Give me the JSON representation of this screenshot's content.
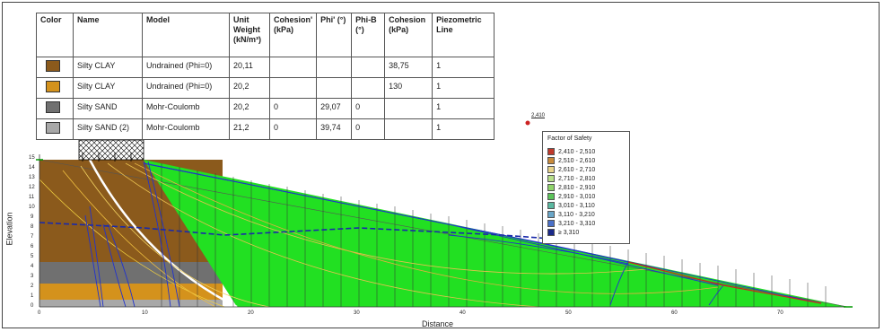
{
  "table": {
    "headers": [
      "Color",
      "Name",
      "Model",
      "Unit Weight (kN/m³)",
      "Cohesion' (kPa)",
      "Phi' (°)",
      "Phi-B (°)",
      "Cohesion (kPa)",
      "Piezometric Line"
    ],
    "rows": [
      {
        "color": "#8b5a1c",
        "name": "Silty CLAY",
        "model": "Undrained (Phi=0)",
        "unit_weight": "20,11",
        "cohesion_eff": "",
        "phi": "",
        "phib": "",
        "cohesion": "38,75",
        "piezo": "1"
      },
      {
        "color": "#d4921c",
        "name": "Silty CLAY",
        "model": "Undrained (Phi=0)",
        "unit_weight": "20,2",
        "cohesion_eff": "",
        "phi": "",
        "phib": "",
        "cohesion": "130",
        "piezo": "1"
      },
      {
        "color": "#707070",
        "name": "Silty SAND",
        "model": "Mohr-Coulomb",
        "unit_weight": "20,2",
        "cohesion_eff": "0",
        "phi": "29,07",
        "phib": "0",
        "cohesion": "",
        "piezo": "1"
      },
      {
        "color": "#a8a8a8",
        "name": "Silty SAND (2)",
        "model": "Mohr-Coulomb",
        "unit_weight": "21,2",
        "cohesion_eff": "0",
        "phi": "39,74",
        "phib": "0",
        "cohesion": "",
        "piezo": "1"
      }
    ]
  },
  "legend": {
    "title": "Factor of Safety",
    "items": [
      {
        "label": "2,410 - 2,510",
        "color": "#c0392b"
      },
      {
        "label": "2,510 - 2,610",
        "color": "#c98a3a"
      },
      {
        "label": "2,610 - 2,710",
        "color": "#e8d48a"
      },
      {
        "label": "2,710 - 2,810",
        "color": "#b8e08a"
      },
      {
        "label": "2,810 - 2,910",
        "color": "#8fd46a"
      },
      {
        "label": "2,910 - 3,010",
        "color": "#5cc45a"
      },
      {
        "label": "3,010 - 3,110",
        "color": "#5ab8a0"
      },
      {
        "label": "3,110 - 3,210",
        "color": "#6aa6c8"
      },
      {
        "label": "3,210 - 3,310",
        "color": "#4a70c8"
      },
      {
        "label": "≥ 3,310",
        "color": "#1a2a8a"
      }
    ]
  },
  "min_fs_label": "2,410",
  "axes": {
    "xlabel": "Distance",
    "ylabel": "Elevation",
    "x_ticks": [
      "0",
      "10",
      "20",
      "30",
      "40",
      "50",
      "60",
      "70"
    ],
    "y_ticks": [
      "0",
      "1",
      "2",
      "3",
      "4",
      "5",
      "6",
      "7",
      "8",
      "9",
      "10",
      "11",
      "12",
      "13",
      "14",
      "15"
    ]
  },
  "colors": {
    "slope_fill": "#22e022",
    "crit_line": "#cc2222",
    "slip": "#2233cc",
    "piezo": "#1a2aaa"
  }
}
